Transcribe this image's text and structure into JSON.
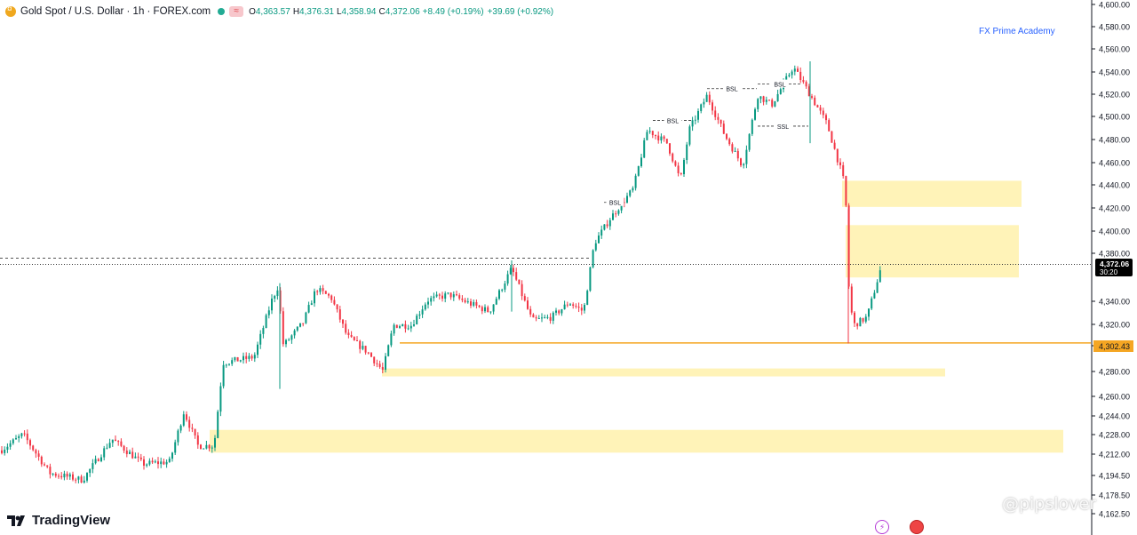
{
  "legend": {
    "symbol": "Gold Spot / U.S. Dollar · 1h · FOREX.com",
    "menu_glyph": "≈",
    "open_label": "O",
    "open": "4,363.57",
    "high_label": "H",
    "high": "4,376.31",
    "low_label": "L",
    "low": "4,358.94",
    "close_label": "C",
    "close": "4,372.06",
    "change": "+8.49 (+0.19%)",
    "change2": "+39.69 (+0.92%)"
  },
  "brand": "FX Prime Academy",
  "tradingview": "TradingView",
  "watermark": "@pipslover",
  "colors": {
    "up": "#089981",
    "down": "#f23645",
    "zone": "#fff3b8",
    "support": "#f5a623",
    "axis_text": "#131722"
  },
  "icons": {
    "symbol": "gold-coin-icon",
    "live": "live-dot-icon",
    "logo": "tradingview-logo-icon",
    "bolt": "bolt-icon",
    "flag": "us-flag-icon"
  },
  "chart_data": {
    "type": "candlestick",
    "timeframe": "1h",
    "ylim": [
      4152,
      4620
    ],
    "yticks": [
      4600,
      4580,
      4560,
      4540,
      4520,
      4500,
      4480,
      4460,
      4440,
      4420,
      4400,
      4380,
      4340,
      4320,
      4300,
      4280,
      4260,
      4244,
      4228,
      4212,
      4194.5,
      4178.5,
      4162.5
    ],
    "ytick_labels": [
      "4,600.00",
      "4,580.00",
      "4,560.00",
      "4,540.00",
      "4,520.00",
      "4,500.00",
      "4,480.00",
      "4,460.00",
      "4,440.00",
      "4,420.00",
      "4,400.00",
      "4,380.00",
      "4,340.00",
      "4,320.00",
      "4,300.00",
      "4,280.00",
      "4,260.00",
      "4,244.00",
      "4,228.00",
      "4,212.00",
      "4,194.50",
      "4,178.50",
      "4,162.50"
    ],
    "price_label": "4,372.06",
    "countdown": "30:20",
    "support_price": 4302.43,
    "support_label": "4,302.43",
    "dashed_level": 4377,
    "zones": [
      {
        "y1": 4422,
        "y2": 4445
      },
      {
        "y1": 4360,
        "y2": 4406
      },
      {
        "y1": 4273,
        "y2": 4280
      },
      {
        "y1": 4206,
        "y2": 4226
      }
    ],
    "annotations": [
      {
        "text": "BSL",
        "price": 4498
      },
      {
        "text": "BSL",
        "price": 4526
      },
      {
        "text": "BSL",
        "price": 4530
      },
      {
        "text": "SSL",
        "price": 4493
      },
      {
        "text": "BSL",
        "price": 4426
      }
    ],
    "anchors": [
      [
        0,
        4208
      ],
      [
        25,
        4222
      ],
      [
        55,
        4188
      ],
      [
        92,
        4182
      ],
      [
        125,
        4218
      ],
      [
        160,
        4196
      ],
      [
        190,
        4198
      ],
      [
        206,
        4242
      ],
      [
        222,
        4212
      ],
      [
        240,
        4212
      ],
      [
        250,
        4285
      ],
      [
        285,
        4290
      ],
      [
        305,
        4340
      ],
      [
        312,
        4352
      ],
      [
        318,
        4300
      ],
      [
        340,
        4320
      ],
      [
        355,
        4350
      ],
      [
        372,
        4342
      ],
      [
        390,
        4308
      ],
      [
        412,
        4295
      ],
      [
        430,
        4278
      ],
      [
        442,
        4318
      ],
      [
        462,
        4318
      ],
      [
        480,
        4340
      ],
      [
        505,
        4345
      ],
      [
        525,
        4338
      ],
      [
        550,
        4330
      ],
      [
        575,
        4368
      ],
      [
        598,
        4322
      ],
      [
        620,
        4325
      ],
      [
        640,
        4338
      ],
      [
        656,
        4330
      ],
      [
        668,
        4390
      ],
      [
        686,
        4412
      ],
      [
        712,
        4438
      ],
      [
        728,
        4490
      ],
      [
        750,
        4478
      ],
      [
        765,
        4445
      ],
      [
        775,
        4490
      ],
      [
        795,
        4520
      ],
      [
        815,
        4485
      ],
      [
        835,
        4458
      ],
      [
        852,
        4520
      ],
      [
        868,
        4512
      ],
      [
        892,
        4545
      ],
      [
        910,
        4522
      ],
      [
        930,
        4495
      ],
      [
        948,
        4448
      ],
      [
        952,
        4418
      ],
      [
        955,
        4342
      ],
      [
        960,
        4318
      ],
      [
        975,
        4325
      ],
      [
        992,
        4372
      ]
    ]
  }
}
